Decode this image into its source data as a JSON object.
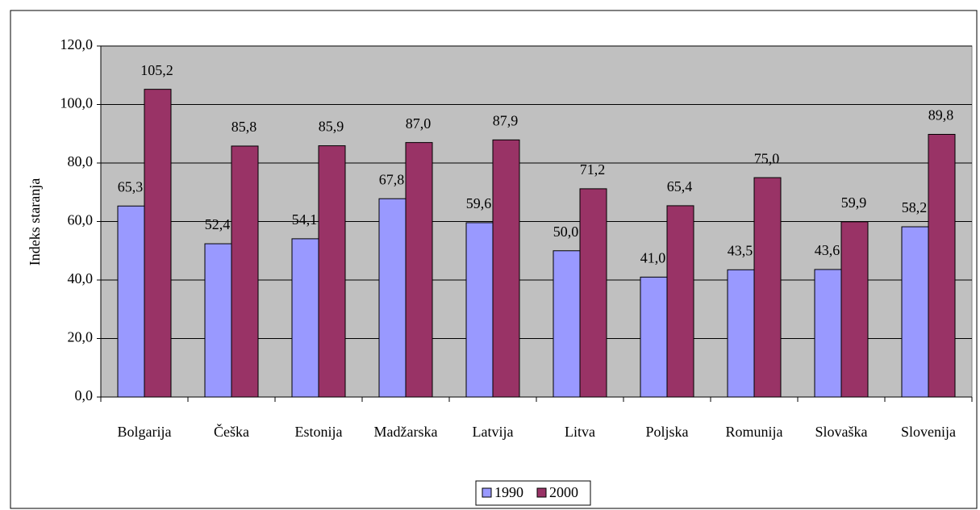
{
  "chart_data": {
    "type": "bar",
    "ylabel": "Indeks staranja",
    "categories": [
      "Bolgarija",
      "Češka",
      "Estonija",
      "Madžarska",
      "Latvija",
      "Litva",
      "Poljska",
      "Romunija",
      "Slovaška",
      "Slovenija"
    ],
    "series": [
      {
        "name": "1990",
        "color": "#9999ff",
        "values": [
          65.3,
          52.4,
          54.1,
          67.8,
          59.6,
          50.0,
          41.0,
          43.5,
          43.6,
          58.2
        ],
        "value_labels": [
          "65,3",
          "52,4",
          "54,1",
          "67,8",
          "59,6",
          "50,0",
          "41,0",
          "43,5",
          "43,6",
          "58,2"
        ]
      },
      {
        "name": "2000",
        "color": "#993366",
        "values": [
          105.2,
          85.8,
          85.9,
          87.0,
          87.9,
          71.2,
          65.4,
          75.0,
          59.9,
          89.8
        ],
        "value_labels": [
          "105,2",
          "85,8",
          "85,9",
          "87,0",
          "87,9",
          "71,2",
          "65,4",
          "75,0",
          "59,9",
          "89,8"
        ]
      }
    ],
    "ylim": [
      0,
      120
    ],
    "yticks": [
      {
        "value": 0,
        "label": "0,0"
      },
      {
        "value": 20,
        "label": "20,0"
      },
      {
        "value": 40,
        "label": "40,0"
      },
      {
        "value": 60,
        "label": "60,0"
      },
      {
        "value": 80,
        "label": "80,0"
      },
      {
        "value": 100,
        "label": "100,0"
      },
      {
        "value": 120,
        "label": "120,0"
      }
    ],
    "grid": true,
    "plot_background": "#c0c0c0",
    "legend": "bottom"
  }
}
